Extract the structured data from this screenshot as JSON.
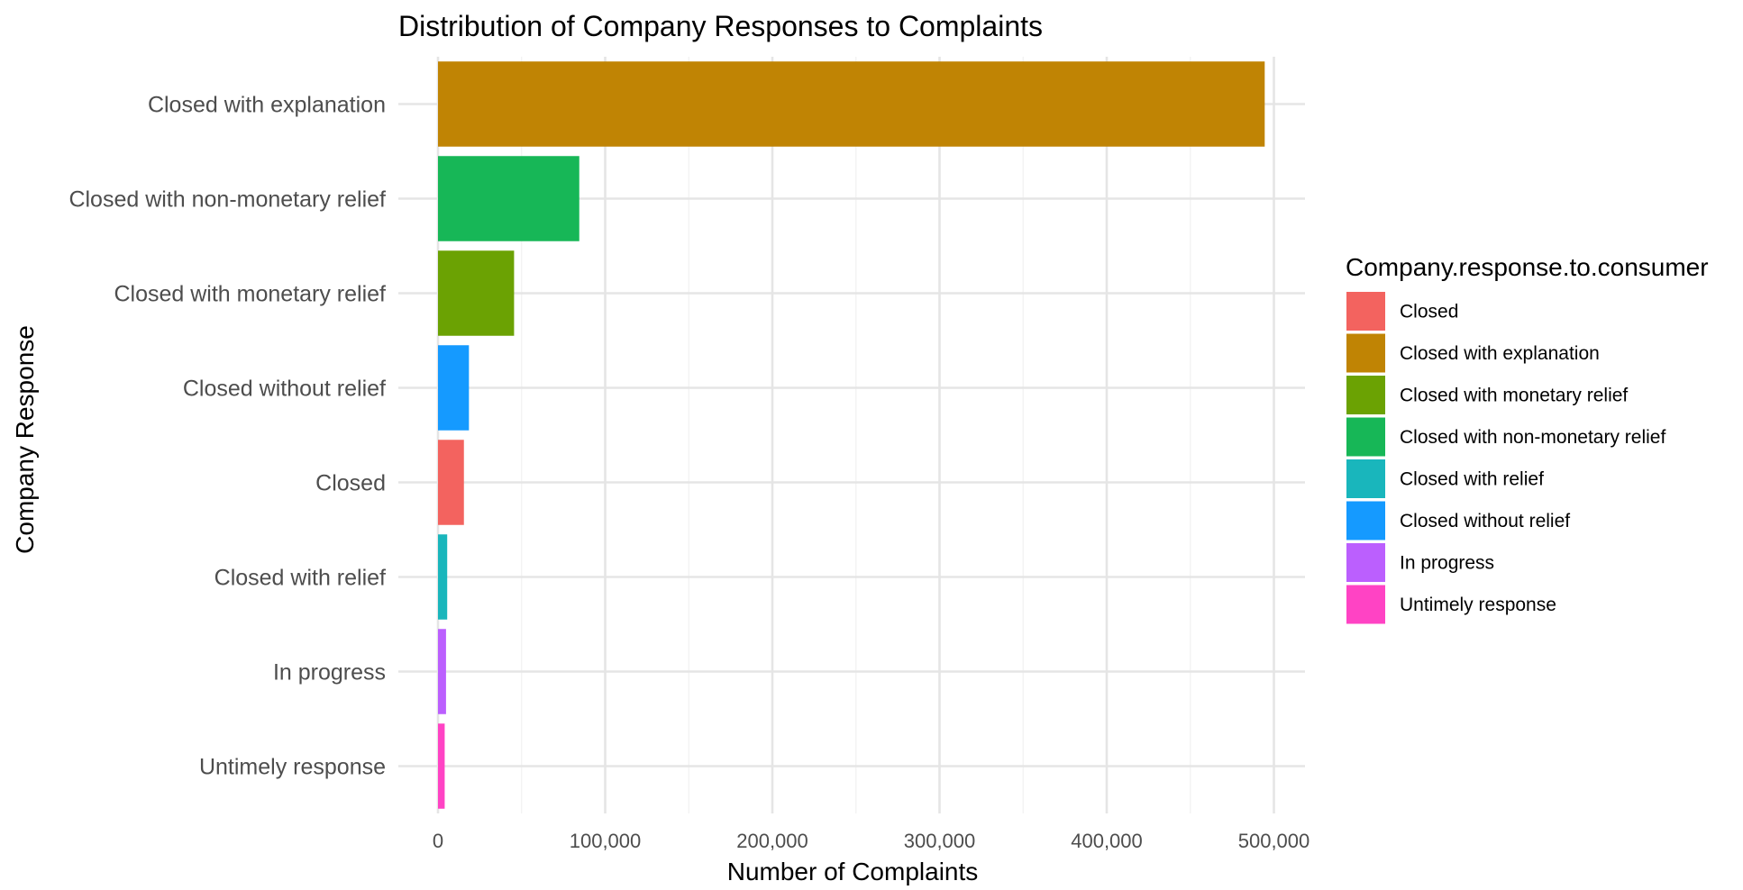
{
  "chart_data": {
    "type": "bar",
    "orientation": "horizontal",
    "title": "Distribution of Company Responses to Complaints",
    "xlabel": "Number of Complaints",
    "ylabel": "Company Response",
    "xlim": [
      0,
      520000
    ],
    "x_ticks": [
      0,
      100000,
      200000,
      300000,
      400000,
      500000
    ],
    "x_tick_labels": [
      "0",
      "100,000",
      "200,000",
      "300,000",
      "400,000",
      "500,000"
    ],
    "grid": true,
    "legend_position": "right",
    "legend_title": "Company.response.to.consumer",
    "categories": [
      "Closed with explanation",
      "Closed with non-monetary relief",
      "Closed with monetary relief",
      "Closed without relief",
      "Closed",
      "Closed with relief",
      "In progress",
      "Untimely response"
    ],
    "values": [
      494500,
      84500,
      45500,
      18500,
      15500,
      5500,
      4800,
      4000
    ],
    "bar_colors": [
      "#C08404",
      "#17B757",
      "#6BA203",
      "#159AFF",
      "#F3635F",
      "#19B6BC",
      "#BB5FFE",
      "#FF43C4"
    ],
    "legend": [
      {
        "label": "Closed",
        "color": "#F3635F"
      },
      {
        "label": "Closed with explanation",
        "color": "#C08404"
      },
      {
        "label": "Closed with monetary relief",
        "color": "#6BA203"
      },
      {
        "label": "Closed with non-monetary relief",
        "color": "#17B757"
      },
      {
        "label": "Closed with relief",
        "color": "#19B6BC"
      },
      {
        "label": "Closed without relief",
        "color": "#159AFF"
      },
      {
        "label": "In progress",
        "color": "#BB5FFE"
      },
      {
        "label": "Untimely response",
        "color": "#FF43C4"
      }
    ]
  }
}
